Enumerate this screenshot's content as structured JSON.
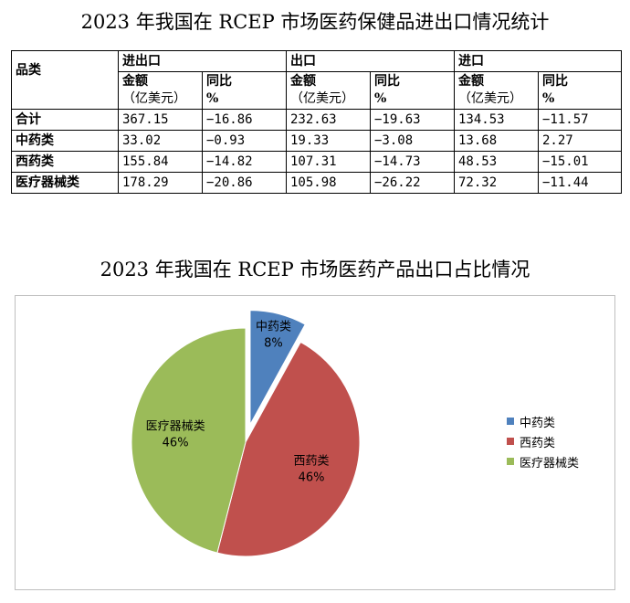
{
  "table_title": "2023 年我国在 RCEP 市场医药保健品进出口情况统计",
  "table": {
    "row_header": "品类",
    "groups": [
      "进出口",
      "出口",
      "进口"
    ],
    "amount_label": "金额",
    "amount_unit": "（亿美元）",
    "yoy_label": "同比",
    "yoy_unit": "%",
    "rows": [
      {
        "label": "合计",
        "values": [
          "367.15",
          "−16.86",
          "232.63",
          "−19.63",
          "134.53",
          "−11.57"
        ]
      },
      {
        "label": "中药类",
        "values": [
          "33.02",
          "−0.93",
          "19.33",
          "−3.08",
          "13.68",
          "2.27"
        ]
      },
      {
        "label": "西药类",
        "values": [
          "155.84",
          "−14.82",
          "107.31",
          "−14.73",
          "48.53",
          "−15.01"
        ]
      },
      {
        "label": "医疗器械类",
        "values": [
          "178.29",
          "−20.86",
          "105.98",
          "−26.22",
          "72.32",
          "−11.44"
        ]
      }
    ]
  },
  "chart_data": {
    "type": "pie",
    "title": "2023 年我国在 RCEP 市场医药产品出口占比情况",
    "categories": [
      "中药类",
      "西药类",
      "医疗器械类"
    ],
    "values": [
      8,
      46,
      46
    ],
    "value_labels": [
      "8%",
      "46%",
      "46%"
    ],
    "exploded": [
      "中药类"
    ],
    "colors": [
      "#4f81bd",
      "#c0504d",
      "#9bbb59"
    ],
    "legend_position": "right"
  }
}
